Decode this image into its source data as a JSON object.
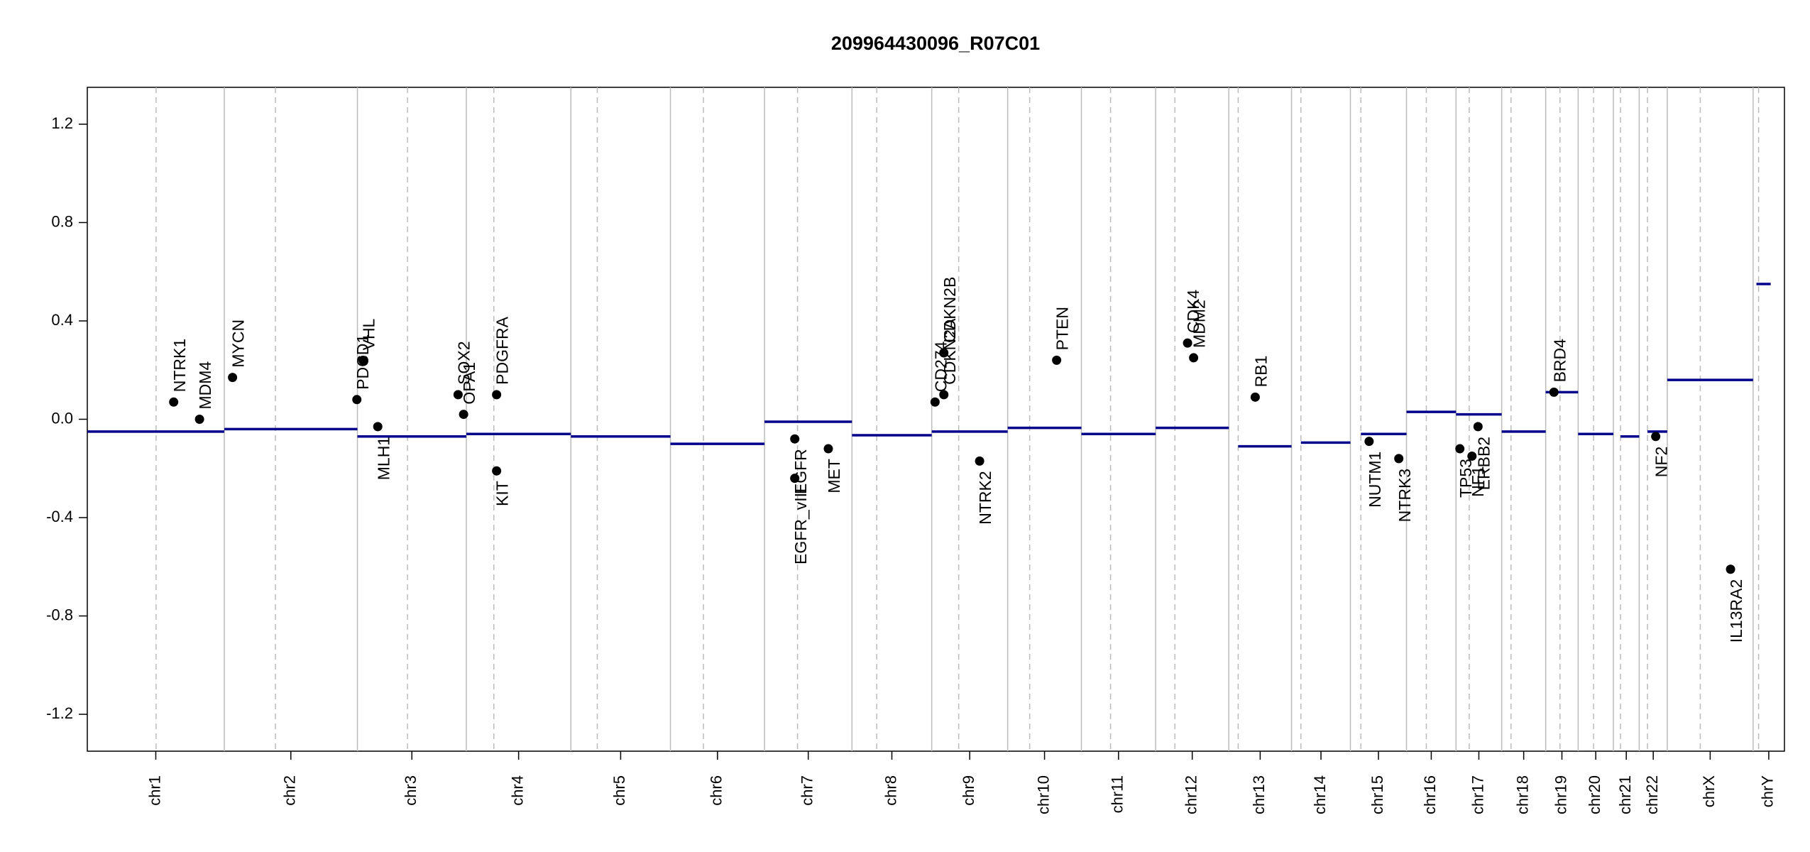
{
  "chart_data": {
    "type": "copy-number",
    "title": "209964430096_R07C01",
    "xlim": [
      0,
      3085
    ],
    "ylim": [
      -1.35,
      1.35
    ],
    "yticks": [
      -1.2,
      -0.8,
      -0.4,
      {
        "value": 0,
        "label": "0.0"
      },
      0.4,
      0.8,
      1.2
    ],
    "segment_color": "#00008b",
    "point_color": "#000000",
    "chromosomes": [
      {
        "name": "chr1",
        "length": 249,
        "centromere": 125
      },
      {
        "name": "chr2",
        "length": 242,
        "centromere": 93
      },
      {
        "name": "chr3",
        "length": 198,
        "centromere": 91
      },
      {
        "name": "chr4",
        "length": 190,
        "centromere": 50
      },
      {
        "name": "chr5",
        "length": 181,
        "centromere": 48
      },
      {
        "name": "chr6",
        "length": 171,
        "centromere": 60
      },
      {
        "name": "chr7",
        "length": 159,
        "centromere": 60
      },
      {
        "name": "chr8",
        "length": 145,
        "centromere": 45
      },
      {
        "name": "chr9",
        "length": 138,
        "centromere": 49
      },
      {
        "name": "chr10",
        "length": 134,
        "centromere": 40
      },
      {
        "name": "chr11",
        "length": 135,
        "centromere": 53
      },
      {
        "name": "chr12",
        "length": 133,
        "centromere": 35
      },
      {
        "name": "chr13",
        "length": 114,
        "centromere": 17
      },
      {
        "name": "chr14",
        "length": 107,
        "centromere": 17
      },
      {
        "name": "chr15",
        "length": 102,
        "centromere": 19
      },
      {
        "name": "chr16",
        "length": 90,
        "centromere": 36
      },
      {
        "name": "chr17",
        "length": 83,
        "centromere": 24
      },
      {
        "name": "chr18",
        "length": 80,
        "centromere": 17
      },
      {
        "name": "chr19",
        "length": 59,
        "centromere": 26
      },
      {
        "name": "chr20",
        "length": 64,
        "centromere": 28
      },
      {
        "name": "chr21",
        "length": 47,
        "centromere": 13
      },
      {
        "name": "chr22",
        "length": 51,
        "centromere": 15
      },
      {
        "name": "chrX",
        "length": 156,
        "centromere": 60
      },
      {
        "name": "chrY",
        "length": 57,
        "centromere": 10
      }
    ],
    "segments": [
      {
        "chrom": 0,
        "start": 0,
        "end": 249,
        "value": -0.05
      },
      {
        "chrom": 1,
        "start": 0,
        "end": 242,
        "value": -0.04
      },
      {
        "chrom": 2,
        "start": 0,
        "end": 198,
        "value": -0.07
      },
      {
        "chrom": 3,
        "start": 0,
        "end": 190,
        "value": -0.06
      },
      {
        "chrom": 4,
        "start": 0,
        "end": 181,
        "value": -0.07
      },
      {
        "chrom": 5,
        "start": 0,
        "end": 171,
        "value": -0.1
      },
      {
        "chrom": 6,
        "start": 0,
        "end": 159,
        "value": -0.01
      },
      {
        "chrom": 7,
        "start": 0,
        "end": 145,
        "value": -0.065
      },
      {
        "chrom": 8,
        "start": 0,
        "end": 138,
        "value": -0.05
      },
      {
        "chrom": 9,
        "start": 0,
        "end": 134,
        "value": -0.035
      },
      {
        "chrom": 10,
        "start": 0,
        "end": 135,
        "value": -0.06
      },
      {
        "chrom": 11,
        "start": 0,
        "end": 133,
        "value": -0.035
      },
      {
        "chrom": 12,
        "start": 17,
        "end": 114,
        "value": -0.11
      },
      {
        "chrom": 13,
        "start": 17,
        "end": 107,
        "value": -0.095
      },
      {
        "chrom": 14,
        "start": 19,
        "end": 102,
        "value": -0.06
      },
      {
        "chrom": 15,
        "start": 0,
        "end": 90,
        "value": 0.03
      },
      {
        "chrom": 16,
        "start": 0,
        "end": 83,
        "value": 0.02
      },
      {
        "chrom": 17,
        "start": 0,
        "end": 80,
        "value": -0.05
      },
      {
        "chrom": 18,
        "start": 0,
        "end": 59,
        "value": 0.11
      },
      {
        "chrom": 19,
        "start": 0,
        "end": 64,
        "value": -0.06
      },
      {
        "chrom": 20,
        "start": 13,
        "end": 47,
        "value": -0.07
      },
      {
        "chrom": 21,
        "start": 15,
        "end": 51,
        "value": -0.05
      },
      {
        "chrom": 22,
        "start": 0,
        "end": 156,
        "value": 0.16
      },
      {
        "chrom": 23,
        "start": 6,
        "end": 32,
        "value": 0.55
      }
    ],
    "genes": [
      {
        "name": "NTRK1",
        "chrom": 0,
        "pos": 157,
        "value": 0.07
      },
      {
        "name": "MDM4",
        "chrom": 0,
        "pos": 204,
        "value": 0.0
      },
      {
        "name": "MYCN",
        "chrom": 1,
        "pos": 15,
        "value": 0.17
      },
      {
        "name": "PDCD1",
        "chrom": 1,
        "pos": 241,
        "value": 0.08
      },
      {
        "name": "VHL",
        "chrom": 2,
        "pos": 10,
        "value": 0.24
      },
      {
        "name": "MLH1",
        "chrom": 2,
        "pos": 37,
        "value": -0.03
      },
      {
        "name": "SOX2",
        "chrom": 2,
        "pos": 183,
        "value": 0.1
      },
      {
        "name": "OPA1",
        "chrom": 2,
        "pos": 193,
        "value": 0.02
      },
      {
        "name": "PDGFRA",
        "chrom": 3,
        "pos": 55,
        "value": 0.1
      },
      {
        "name": "KIT",
        "chrom": 3,
        "pos": 55,
        "value": -0.21
      },
      {
        "name": "EGFR",
        "chrom": 6,
        "pos": 55,
        "value": -0.08
      },
      {
        "name": "EGFR_vIII",
        "chrom": 6,
        "pos": 55,
        "value": -0.24
      },
      {
        "name": "MET",
        "chrom": 6,
        "pos": 116,
        "value": -0.12
      },
      {
        "name": "CD274",
        "chrom": 8,
        "pos": 6,
        "value": 0.07
      },
      {
        "name": "CDKN2A",
        "chrom": 8,
        "pos": 22,
        "value": 0.1
      },
      {
        "name": "CDKN2B",
        "chrom": 8,
        "pos": 22,
        "value": 0.27
      },
      {
        "name": "NTRK2",
        "chrom": 8,
        "pos": 87,
        "value": -0.17
      },
      {
        "name": "PTEN",
        "chrom": 9,
        "pos": 89,
        "value": 0.24
      },
      {
        "name": "CDK4",
        "chrom": 11,
        "pos": 58,
        "value": 0.31
      },
      {
        "name": "MDM2",
        "chrom": 11,
        "pos": 69,
        "value": 0.25
      },
      {
        "name": "RB1",
        "chrom": 12,
        "pos": 48,
        "value": 0.09
      },
      {
        "name": "NUTM1",
        "chrom": 14,
        "pos": 34,
        "value": -0.09
      },
      {
        "name": "NTRK3",
        "chrom": 14,
        "pos": 88,
        "value": -0.16
      },
      {
        "name": "TP53",
        "chrom": 16,
        "pos": 7,
        "value": -0.12
      },
      {
        "name": "NF1",
        "chrom": 16,
        "pos": 29,
        "value": -0.15
      },
      {
        "name": "ERBB2",
        "chrom": 16,
        "pos": 40,
        "value": -0.03
      },
      {
        "name": "BRD4",
        "chrom": 18,
        "pos": 15,
        "value": 0.11
      },
      {
        "name": "NF2",
        "chrom": 21,
        "pos": 30,
        "value": -0.07
      },
      {
        "name": "IL13RA2",
        "chrom": 22,
        "pos": 115,
        "value": -0.61
      }
    ]
  }
}
